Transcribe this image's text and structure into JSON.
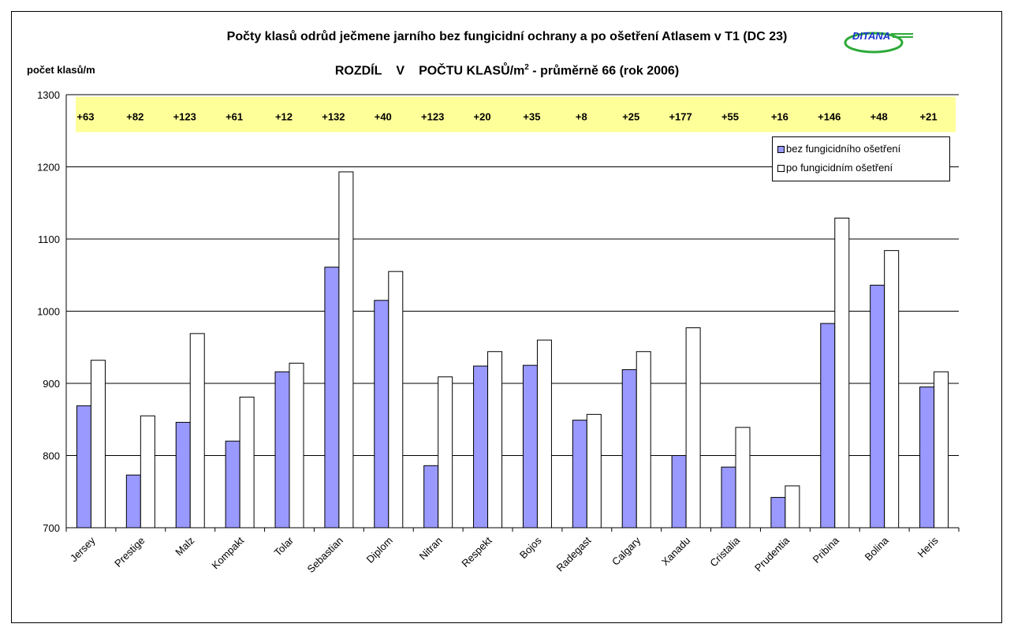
{
  "header": {
    "title": "Počty klasů odrůd ječmene jarního bez fungicidní ochrany a po ošetření Atlasem v T1 (DC 23)",
    "subtitle_part1": "ROZDÍL",
    "subtitle_part2": "V",
    "subtitle_part3": "POČTU KLASŮ/m",
    "subtitle_sup": "2",
    "subtitle_part4": " - průměrně 66 (rok 2006)",
    "ylabel": "počet klasů/m",
    "logo_text": "DITANA"
  },
  "colors": {
    "series1": "#9999ff",
    "series2": "#ffffff",
    "diff_band": "#ffff99",
    "logo_blue": "#1a33cc",
    "logo_green": "#2eaa3a"
  },
  "chart_data": {
    "type": "bar",
    "title": "Počty klasů odrůd ječmene jarního bez fungicidní ochrany a po ošetření Atlasem v T1 (DC 23)",
    "ylabel": "počet klasů/m",
    "ylim": [
      700,
      1300
    ],
    "yticks": [
      "700",
      "800",
      "900",
      "1000",
      "1100",
      "1200",
      "1300"
    ],
    "grid": true,
    "legend_position": "top-right",
    "categories": [
      "Jersey",
      "Prestige",
      "Malz",
      "Kompakt",
      "Tolar",
      "Sebastian",
      "Diplom",
      "Nitran",
      "Respekt",
      "Bojos",
      "Radegast",
      "Calgary",
      "Xanadu",
      "Cristalia",
      "Prudentia",
      "Pribina",
      "Bolina",
      "Heris"
    ],
    "series": [
      {
        "name": "bez fungicidního ošetření",
        "values": [
          869,
          773,
          846,
          820,
          916,
          1061,
          1015,
          786,
          924,
          925,
          849,
          919,
          800,
          784,
          742,
          983,
          1036,
          895
        ]
      },
      {
        "name": "po fungicidním ošetření",
        "values": [
          932,
          855,
          969,
          881,
          928,
          1193,
          1055,
          909,
          944,
          960,
          857,
          944,
          977,
          839,
          758,
          1129,
          1084,
          916
        ]
      }
    ],
    "differences": [
      "+63",
      "+82",
      "+123",
      "+61",
      "+12",
      "+132",
      "+40",
      "+123",
      "+20",
      "+35",
      "+8",
      "+25",
      "+177",
      "+55",
      "+16",
      "+146",
      "+48",
      "+21"
    ]
  }
}
